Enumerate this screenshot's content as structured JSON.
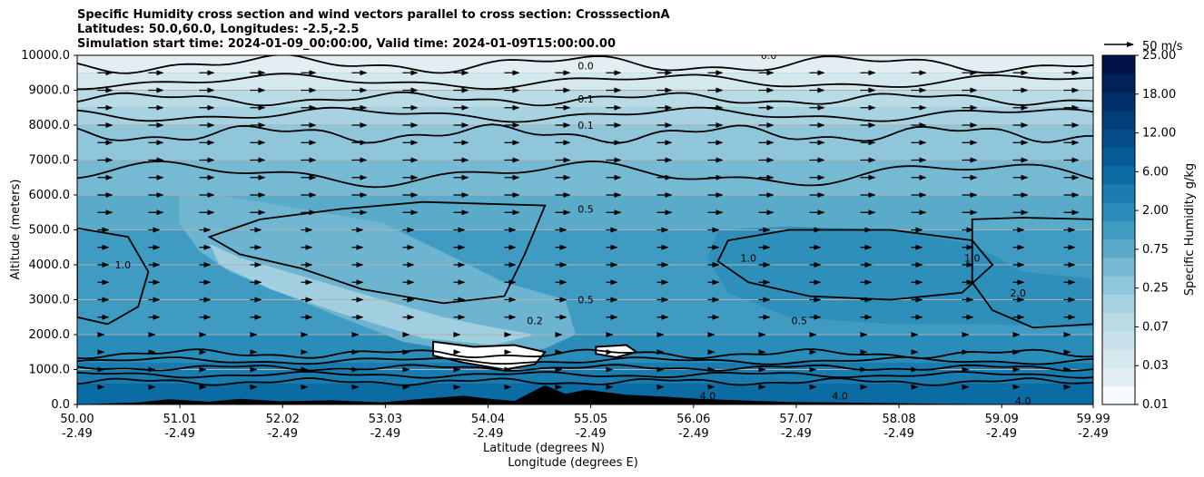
{
  "title": {
    "line1": "Specific Humidity cross section and wind vectors parallel to cross section: CrosssectionA",
    "line2": "Latitudes: 50.0,60.0, Longitudes: -2.5,-2.5",
    "line3": "Simulation start time: 2024-01-09_00:00:00, Valid time: 2024-01-09T15:00:00.00"
  },
  "chart_data": {
    "type": "heatmap",
    "subtype": "filled contour cross section with wind vectors",
    "xlabel_lat": "Latitude (degrees N)",
    "xlabel_lon": "Longitude (degrees E)",
    "ylabel": "Altitude (meters)",
    "ylim": [
      0,
      10000
    ],
    "y_ticks": [
      "0.0",
      "1000.0",
      "2000.0",
      "3000.0",
      "4000.0",
      "5000.0",
      "6000.0",
      "7000.0",
      "8000.0",
      "9000.0",
      "10000.0"
    ],
    "y_tick_values": [
      0,
      1000,
      2000,
      3000,
      4000,
      5000,
      6000,
      7000,
      8000,
      9000,
      10000
    ],
    "x_ticks": [
      {
        "lat": "50.00",
        "lon": "-2.49"
      },
      {
        "lat": "51.01",
        "lon": "-2.49"
      },
      {
        "lat": "52.02",
        "lon": "-2.49"
      },
      {
        "lat": "53.03",
        "lon": "-2.49"
      },
      {
        "lat": "54.04",
        "lon": "-2.49"
      },
      {
        "lat": "55.05",
        "lon": "-2.49"
      },
      {
        "lat": "56.06",
        "lon": "-2.49"
      },
      {
        "lat": "57.07",
        "lon": "-2.49"
      },
      {
        "lat": "58.08",
        "lon": "-2.49"
      },
      {
        "lat": "59.09",
        "lon": "-2.49"
      },
      {
        "lat": "59.99",
        "lon": "-2.49"
      }
    ],
    "xlim": [
      50.0,
      59.99
    ],
    "grid": "horizontal",
    "colorbar": {
      "label": "Specific Humidity g/kg",
      "ticks": [
        "0.01",
        "0.03",
        "0.07",
        "0.25",
        "0.75",
        "2.00",
        "6.00",
        "12.00",
        "18.00",
        "25.00"
      ],
      "tick_positions": [
        0,
        1,
        2,
        3,
        4,
        5,
        6,
        7,
        8,
        9
      ],
      "levels": [
        "0.01",
        "0.02",
        "0.03",
        "0.05",
        "0.07",
        "0.1",
        "0.25",
        "0.5",
        "0.75",
        "1.0",
        "2.0",
        "4.0",
        "6.0",
        "8.0",
        "12.0",
        "15.0",
        "18.0",
        "25.0"
      ],
      "colors": [
        "#f7fbff",
        "#e3eef2",
        "#d5e8ee",
        "#c7e2ea",
        "#b9dbe6",
        "#a6d2e1",
        "#8fc6da",
        "#76b9d2",
        "#5aaaca",
        "#3f9bc1",
        "#2a8cb8",
        "#1a7cae",
        "#0b6ba3",
        "#065c97",
        "#044d88",
        "#033e78",
        "#022f68",
        "#012157",
        "#001447"
      ]
    },
    "contour_lines": [
      {
        "level": "0.0",
        "label_lat": 55.0,
        "label_alt": 9700
      },
      {
        "level": "0.1",
        "label_lat": 55.0,
        "label_alt": 8750
      },
      {
        "level": "0.1",
        "label_lat": 55.0,
        "label_alt": 8000
      },
      {
        "level": "0.5",
        "label_lat": 55.0,
        "label_alt": 5600
      },
      {
        "level": "0.5",
        "label_lat": 55.0,
        "label_alt": 3000
      },
      {
        "level": "0.2",
        "label_lat": 54.5,
        "label_alt": 2400
      },
      {
        "level": "1.0",
        "label_lat": 50.45,
        "label_alt": 4000
      },
      {
        "level": "1.0",
        "label_lat": 56.6,
        "label_alt": 4200
      },
      {
        "level": "1.0",
        "label_lat": 58.8,
        "label_alt": 4200
      },
      {
        "level": "2.0",
        "label_lat": 59.25,
        "label_alt": 3200
      },
      {
        "level": "0.5",
        "label_lat": 57.1,
        "label_alt": 2400
      },
      {
        "level": "4.0",
        "label_lat": 56.2,
        "label_alt": 250
      },
      {
        "level": "4.0",
        "label_lat": 57.5,
        "label_alt": 250
      },
      {
        "level": "4.0",
        "label_lat": 59.3,
        "label_alt": 100
      },
      {
        "level": "0.0",
        "label_lat": 56.8,
        "label_alt": 10000
      }
    ],
    "wind_reference": {
      "label": "50 m/s",
      "speed": 50
    },
    "wind_vectors": {
      "direction": "parallel to section, northward (left to right)",
      "typical_speed_ms": 18,
      "lat_spacing_deg": 0.5,
      "alt_levels_m": [
        9500,
        9000,
        8500,
        8000,
        7500,
        7000,
        6500,
        6000,
        5500,
        5000,
        4500,
        4000,
        3500,
        3000,
        2500,
        2000,
        1500,
        1000,
        500
      ]
    },
    "terrain": {
      "description": "Orography along the bottom of the section",
      "lat": [
        50.0,
        50.6,
        50.9,
        51.3,
        51.6,
        52.0,
        52.5,
        53.0,
        53.3,
        53.8,
        54.1,
        54.3,
        54.6,
        54.8,
        55.0,
        55.4,
        55.8,
        56.1,
        56.6,
        57.0,
        57.5,
        58.0,
        58.5,
        59.0,
        59.5,
        59.99
      ],
      "alt": [
        0,
        60,
        150,
        80,
        160,
        90,
        120,
        60,
        140,
        250,
        150,
        100,
        550,
        300,
        420,
        280,
        220,
        160,
        110,
        70,
        60,
        40,
        20,
        10,
        0,
        0
      ]
    }
  }
}
